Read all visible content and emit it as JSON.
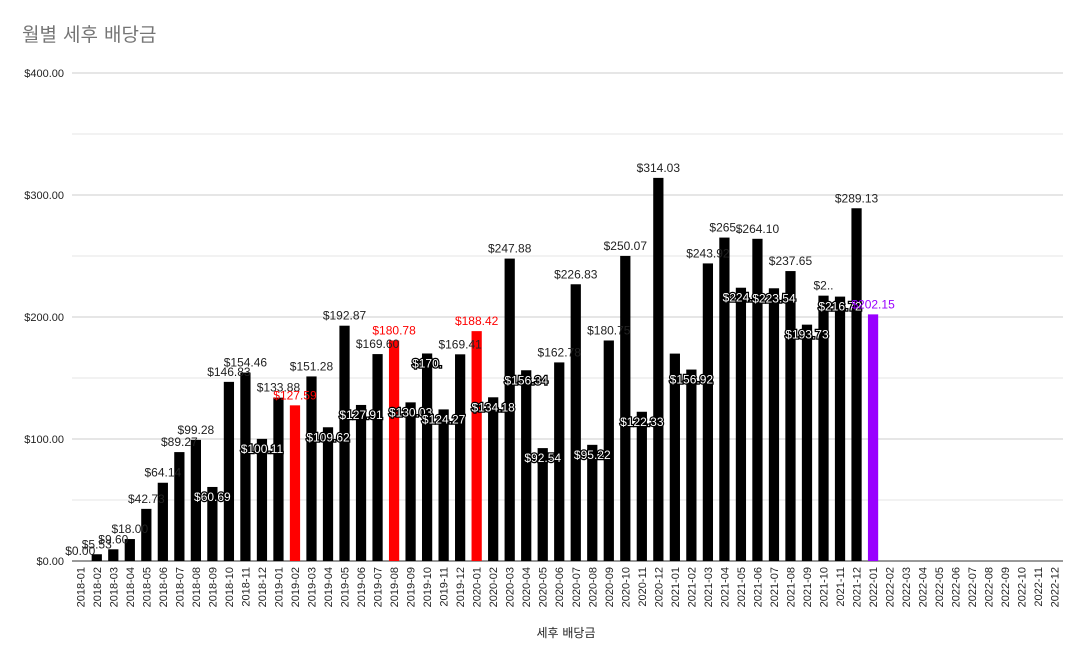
{
  "chart_data": {
    "type": "bar",
    "title": "월별 세후 배당금",
    "xlabel": "세후 배당금",
    "ylabel": "",
    "ylim": [
      0,
      400
    ],
    "yticks": [
      "$0.00",
      "$100.00",
      "$200.00",
      "$300.00",
      "$400.00"
    ],
    "yticks_values": [
      0,
      100,
      200,
      300,
      400
    ],
    "grid": true,
    "colors": {
      "default": "#000000",
      "highlight_red": "#ff0000",
      "highlight_purple": "#9900ff",
      "gridline": "#cccccc",
      "minor_gridline": "#e6e6e6",
      "title": "#757575"
    },
    "categories": [
      "2018-01",
      "2018-02",
      "2018-03",
      "2018-04",
      "2018-05",
      "2018-06",
      "2018-07",
      "2018-08",
      "2018-09",
      "2018-10",
      "2018-11",
      "2018-12",
      "2019-01",
      "2019-02",
      "2019-03",
      "2019-04",
      "2019-05",
      "2019-06",
      "2019-07",
      "2019-08",
      "2019-09",
      "2019-10",
      "2019-11",
      "2019-12",
      "2020-01",
      "2020-02",
      "2020-03",
      "2020-04",
      "2020-05",
      "2020-06",
      "2020-07",
      "2020-08",
      "2020-09",
      "2020-10",
      "2020-11",
      "2020-12",
      "2021-01",
      "2021-02",
      "2021-03",
      "2021-04",
      "2021-05",
      "2021-06",
      "2021-07",
      "2021-08",
      "2021-09",
      "2021-10",
      "2021-11",
      "2021-12",
      "2022-01",
      "2022-02",
      "2022-03",
      "2022-04",
      "2022-05",
      "2022-06",
      "2022-07",
      "2022-08",
      "2022-09",
      "2022-10",
      "2022-11",
      "2022-12"
    ],
    "values": [
      0.0,
      5.53,
      9.6,
      18.0,
      42.73,
      64.14,
      89.27,
      99.28,
      60.69,
      146.83,
      154.46,
      100.11,
      133.88,
      127.59,
      151.28,
      109.62,
      192.87,
      127.91,
      169.6,
      180.78,
      130.03,
      170.1,
      124.27,
      169.41,
      188.42,
      134.18,
      247.88,
      156.34,
      92.54,
      162.78,
      226.83,
      95.22,
      180.75,
      250.07,
      122.33,
      314.03,
      170.0,
      156.92,
      243.92,
      265.1,
      224.0,
      264.1,
      223.54,
      237.65,
      193.73,
      217.5,
      216.72,
      289.13,
      202.15,
      null,
      null,
      null,
      null,
      null,
      null,
      null,
      null,
      null,
      null,
      null
    ],
    "labels": [
      "$0.00",
      "$5.53",
      "$9.60",
      "$18.00",
      "$42.73",
      "$64.14",
      "$89.27",
      "$99.28",
      "$60.69",
      "$146.83",
      "$154.46",
      "$100.11",
      "$133.88",
      "$127.59",
      "$151.28",
      "$109.62",
      "$192.87",
      "$127.91",
      "$169.60",
      "$180.78",
      "$130.03",
      "$170.",
      "$124.27",
      "$169.41",
      "$188.42",
      "$134.18",
      "$247.88",
      "$156.34",
      "$92.54",
      "$162.78",
      "$226.83",
      "$95.22",
      "$180.75",
      "$250.07",
      "$122.33",
      "$314.03",
      "",
      "$156.92",
      "$243.92",
      "$265.",
      "$224.0",
      "$264.10",
      "$223.54",
      "$237.65",
      "$193.73",
      "$2..",
      "$216.72",
      "$289.13",
      "$202.15",
      "",
      "",
      "",
      "",
      "",
      "",
      "",
      "",
      "",
      "",
      ""
    ],
    "bar_colors": [
      "#000000",
      "#000000",
      "#000000",
      "#000000",
      "#000000",
      "#000000",
      "#000000",
      "#000000",
      "#000000",
      "#000000",
      "#000000",
      "#000000",
      "#000000",
      "#ff0000",
      "#000000",
      "#000000",
      "#000000",
      "#000000",
      "#000000",
      "#ff0000",
      "#000000",
      "#000000",
      "#000000",
      "#000000",
      "#ff0000",
      "#000000",
      "#000000",
      "#000000",
      "#000000",
      "#000000",
      "#000000",
      "#000000",
      "#000000",
      "#000000",
      "#000000",
      "#000000",
      "#000000",
      "#000000",
      "#000000",
      "#000000",
      "#000000",
      "#000000",
      "#000000",
      "#000000",
      "#000000",
      "#000000",
      "#000000",
      "#000000",
      "#9900ff",
      "#000000",
      "#000000",
      "#000000",
      "#000000",
      "#000000",
      "#000000",
      "#000000",
      "#000000",
      "#000000",
      "#000000",
      "#000000"
    ],
    "label_positions": [
      "above",
      "above",
      "above",
      "above",
      "above",
      "above",
      "above",
      "above",
      "inside",
      "above",
      "above",
      "inside",
      "above",
      "above",
      "above",
      "inside",
      "above",
      "inside",
      "above",
      "above",
      "inside",
      "inside",
      "inside",
      "above",
      "above",
      "inside",
      "above",
      "inside",
      "inside",
      "above",
      "above",
      "inside",
      "above",
      "above",
      "inside",
      "above",
      "inside",
      "inside",
      "above",
      "above",
      "inside",
      "above",
      "inside",
      "above",
      "inside",
      "above",
      "inside",
      "above",
      "above",
      "",
      "",
      "",
      "",
      "",
      "",
      "",
      "",
      "",
      "",
      ""
    ]
  }
}
